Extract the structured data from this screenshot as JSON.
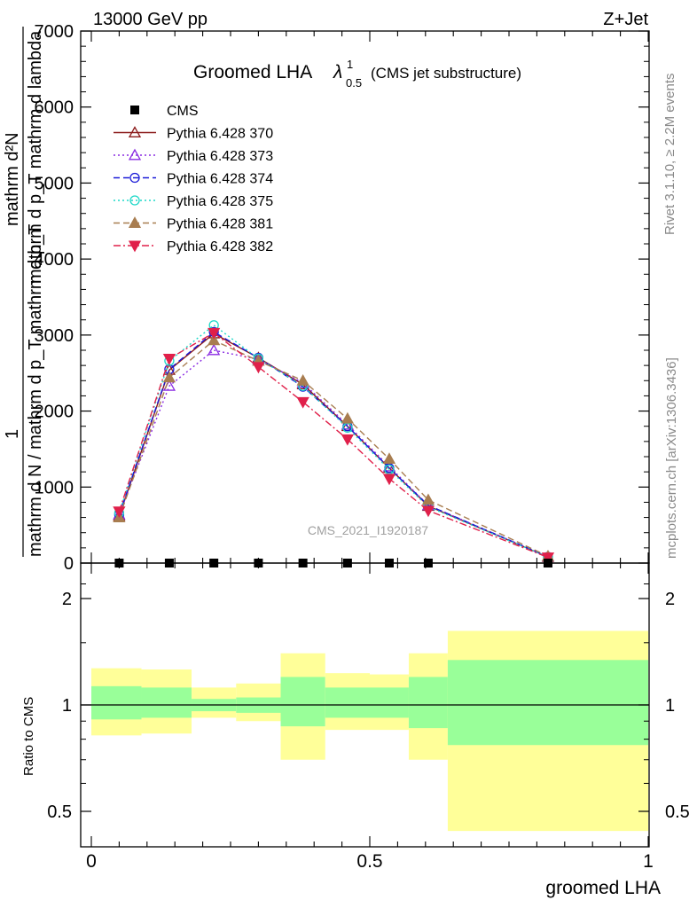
{
  "header": {
    "left": "13000 GeV pp",
    "right": "Z+Jet"
  },
  "side_labels": {
    "rivet": "Rivet 3.1.10, ≥ 2.2M events",
    "mcplots": "mcplots.cern.ch [arXiv:1306.3436]"
  },
  "chart_data": {
    "type": "line",
    "title_main": "Groomed LHA",
    "title_symbol": "λ",
    "title_sup": "1",
    "title_sub": "0.5",
    "title_note": "(CMS jet substructure)",
    "analysis_id": "CMS_2021_I1920187",
    "ylabel_top_numerator": "mathrm d²N",
    "ylabel_top_denominator": "mathrm d p_T mathrm d lambda",
    "ylabel_top_prefix": "1",
    "ylabel_top_full": "mathrm d N / mathrm d p_T mathrm d p_T",
    "xlabel": "groomed LHA",
    "ratio_ylabel": "Ratio to CMS",
    "main_ylim": [
      0,
      7000
    ],
    "main_yticks": [
      0,
      1000,
      2000,
      3000,
      4000,
      5000,
      6000,
      7000
    ],
    "main_ytick_labels": [
      "0",
      "1000",
      "2000",
      "3000",
      "4000",
      "5000",
      "6000",
      "7000"
    ],
    "xlim": [
      0,
      1
    ],
    "xticks": [
      0,
      0.5,
      1
    ],
    "xtick_labels": [
      "0",
      "0.5",
      "1"
    ],
    "ratio_ylim": [
      0.42,
      2.3
    ],
    "ratio_yticks": [
      0.5,
      1,
      2
    ],
    "ratio_ytick_labels": [
      "0.5",
      "1",
      "2"
    ],
    "x": [
      0.05,
      0.14,
      0.22,
      0.3,
      0.38,
      0.46,
      0.535,
      0.605,
      0.82
    ],
    "cms": [
      0,
      0,
      0,
      0,
      0,
      0,
      0,
      0,
      0
    ],
    "series": [
      {
        "name": "CMS",
        "color": "#000000",
        "marker": "square",
        "dash": "none"
      },
      {
        "name": "Pythia 6.428 370",
        "color": "#8b1a1a",
        "marker": "tri-up-open",
        "dash": "none",
        "values": [
          620,
          2540,
          3020,
          2700,
          2350,
          1800,
          1250,
          750,
          80
        ]
      },
      {
        "name": "Pythia 6.428 373",
        "color": "#8a2be2",
        "marker": "tri-up-open",
        "dash": "2,3",
        "values": [
          640,
          2330,
          2800,
          2680,
          2370,
          1820,
          1270,
          760,
          85
        ]
      },
      {
        "name": "Pythia 6.428 374",
        "color": "#1a1ad8",
        "marker": "circle-open",
        "dash": "7,4",
        "values": [
          640,
          2550,
          3040,
          2700,
          2320,
          1800,
          1250,
          760,
          82
        ]
      },
      {
        "name": "Pythia 6.428 375",
        "color": "#1ed8c8",
        "marker": "circle-open",
        "dash": "2,3",
        "values": [
          660,
          2660,
          3130,
          2690,
          2330,
          1780,
          1230,
          740,
          80
        ]
      },
      {
        "name": "Pythia 6.428 381",
        "color": "#a87d50",
        "marker": "tri-up-filled",
        "dash": "7,4",
        "values": [
          600,
          2440,
          2930,
          2660,
          2400,
          1900,
          1370,
          830,
          90
        ]
      },
      {
        "name": "Pythia 6.428 382",
        "color": "#e0204a",
        "marker": "tri-down-filled",
        "dash": "8,3,2,3",
        "values": [
          680,
          2690,
          3030,
          2580,
          2120,
          1630,
          1110,
          690,
          75
        ]
      }
    ],
    "ratio_bands": [
      {
        "x0": 0.0,
        "x1": 0.09,
        "green_lo": 0.91,
        "green_hi": 1.13,
        "yellow_lo": 0.82,
        "yellow_hi": 1.27
      },
      {
        "x0": 0.09,
        "x1": 0.18,
        "green_lo": 0.92,
        "green_hi": 1.12,
        "yellow_lo": 0.83,
        "yellow_hi": 1.26
      },
      {
        "x0": 0.18,
        "x1": 0.26,
        "green_lo": 0.96,
        "green_hi": 1.04,
        "yellow_lo": 0.92,
        "yellow_hi": 1.12
      },
      {
        "x0": 0.26,
        "x1": 0.34,
        "green_lo": 0.95,
        "green_hi": 1.05,
        "yellow_lo": 0.9,
        "yellow_hi": 1.15
      },
      {
        "x0": 0.34,
        "x1": 0.42,
        "green_lo": 0.87,
        "green_hi": 1.2,
        "yellow_lo": 0.7,
        "yellow_hi": 1.4
      },
      {
        "x0": 0.42,
        "x1": 0.5,
        "green_lo": 0.92,
        "green_hi": 1.12,
        "yellow_lo": 0.85,
        "yellow_hi": 1.23
      },
      {
        "x0": 0.5,
        "x1": 0.57,
        "green_lo": 0.92,
        "green_hi": 1.12,
        "yellow_lo": 0.85,
        "yellow_hi": 1.22
      },
      {
        "x0": 0.57,
        "x1": 0.64,
        "green_lo": 0.86,
        "green_hi": 1.2,
        "yellow_lo": 0.7,
        "yellow_hi": 1.4
      },
      {
        "x0": 0.64,
        "x1": 1.0,
        "green_lo": 0.77,
        "green_hi": 1.34,
        "yellow_lo": 0.44,
        "yellow_hi": 1.62
      }
    ],
    "colors": {
      "green": "#99ff99",
      "yellow": "#ffff99"
    }
  }
}
